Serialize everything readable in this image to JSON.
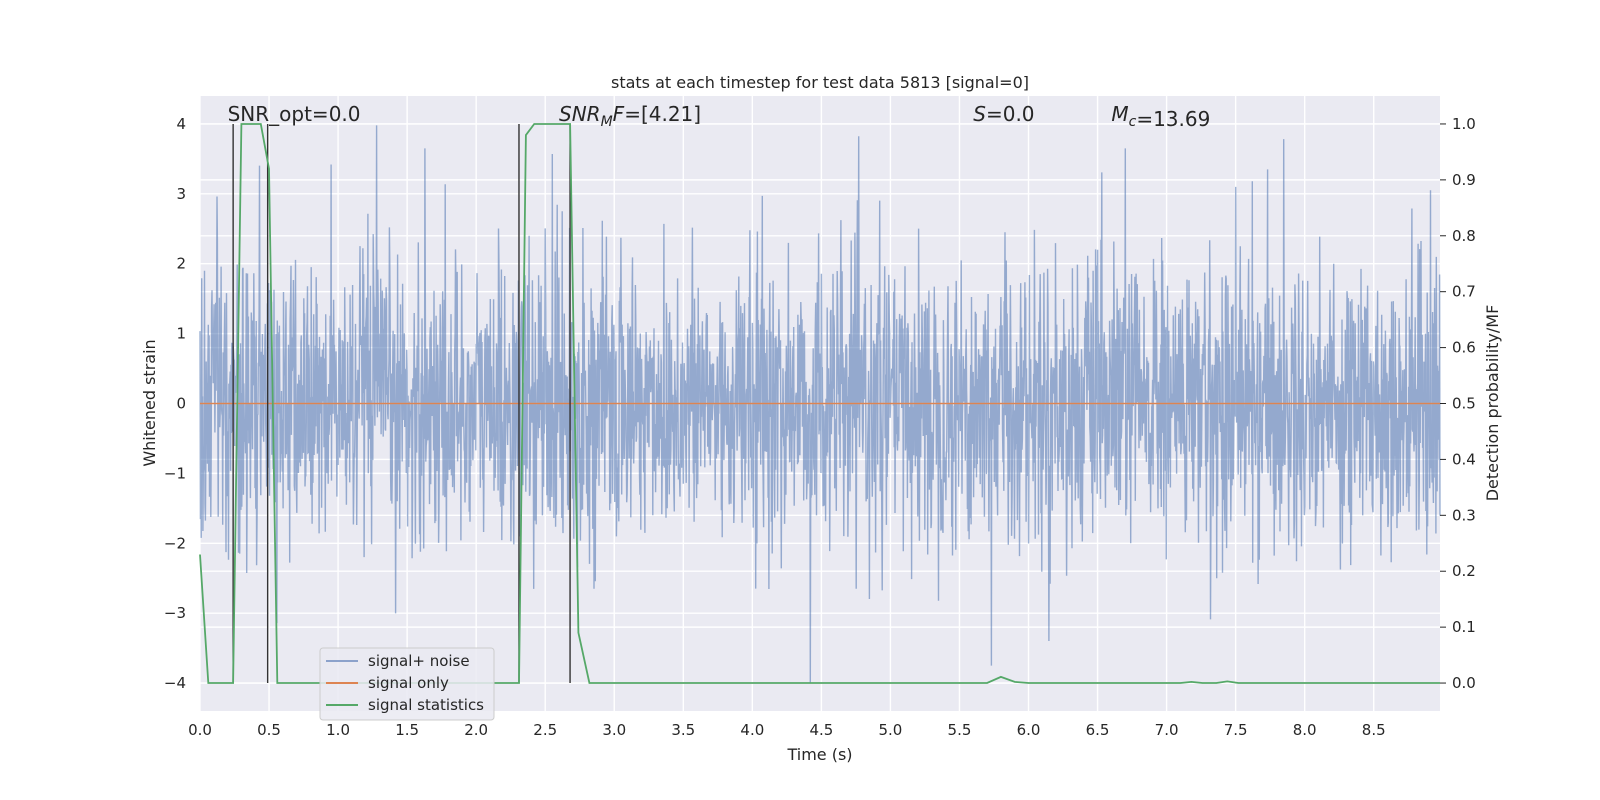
{
  "chart_data": {
    "type": "line",
    "title": "stats at each timestep for test data 5813 [signal=0]",
    "xlabel": "Time (s)",
    "ylabel": "Whitened strain",
    "ylabel_right": "Detection probability/MF",
    "xlim": [
      0,
      8.98
    ],
    "ylim": [
      -4.4,
      4.4
    ],
    "ylim_right": [
      -0.05,
      1.05
    ],
    "x_ticks": [
      "0.0",
      "0.5",
      "1.0",
      "1.5",
      "2.0",
      "2.5",
      "3.0",
      "3.5",
      "4.0",
      "4.5",
      "5.0",
      "5.5",
      "6.0",
      "6.5",
      "7.0",
      "7.5",
      "8.0",
      "8.5"
    ],
    "y_ticks": [
      "4",
      "3",
      "2",
      "1",
      "0",
      "−1",
      "−2",
      "−3",
      "−4"
    ],
    "y_ticks_right": [
      "1.0",
      "0.9",
      "0.8",
      "0.7",
      "0.6",
      "0.5",
      "0.4",
      "0.3",
      "0.2",
      "0.1",
      "0.0"
    ],
    "grid": true,
    "legend_position": "lower-left",
    "annotations": [
      {
        "text": "SNR_opt=0.0",
        "x": 0.2
      },
      {
        "text": "=[4.21]",
        "sym": "SNR",
        "sub": "M",
        "sym2": "F",
        "x": 2.6
      },
      {
        "text": "=0.0",
        "sym": "S",
        "x": 5.6
      },
      {
        "text": "=13.69",
        "sym": "M",
        "sub": "c",
        "x": 6.6
      }
    ],
    "detection_windows": [
      [
        0.24,
        0.49
      ],
      [
        2.31,
        2.68
      ]
    ],
    "series": [
      {
        "name": "signal+ noise",
        "color": "#4c72b0",
        "axis": "left",
        "noise": {
          "n": 3000,
          "sigma": 1.0,
          "seed": 5813
        },
        "spikes": [
          {
            "x": 4.42,
            "y": -4.0
          },
          {
            "x": 5.73,
            "y": -3.75
          },
          {
            "x": 5.83,
            "y": 2.45
          },
          {
            "x": 7.43,
            "y": 1.83
          },
          {
            "x": 7.5,
            "y": 3.1
          },
          {
            "x": 1.28,
            "y": 3.98
          },
          {
            "x": 0.95,
            "y": 3.42
          },
          {
            "x": 1.63,
            "y": 3.65
          },
          {
            "x": 2.55,
            "y": 3.57
          },
          {
            "x": 6.7,
            "y": 3.65
          },
          {
            "x": 7.73,
            "y": 3.35
          },
          {
            "x": 8.91,
            "y": 3.05
          }
        ]
      },
      {
        "name": "signal only",
        "color": "#dd8452",
        "axis": "left",
        "x": [
          0,
          8.98
        ],
        "y": [
          0,
          0
        ]
      },
      {
        "name": "signal statistics",
        "color": "#55a868",
        "axis": "right",
        "x": [
          0,
          0.06,
          0.24,
          0.3,
          0.44,
          0.5,
          0.56,
          2.31,
          2.36,
          2.42,
          2.6,
          2.68,
          2.74,
          2.82,
          5.7,
          5.8,
          5.9,
          6.0,
          7.1,
          7.18,
          7.26,
          7.36,
          7.44,
          7.52,
          8.98
        ],
        "y": [
          0.23,
          0.0,
          0.0,
          1.0,
          1.0,
          0.92,
          0.0,
          0.0,
          0.98,
          1.0,
          1.0,
          1.0,
          0.09,
          0.0,
          0.0,
          0.011,
          0.002,
          0.0,
          0.0,
          0.002,
          0.0,
          0.0,
          0.003,
          0.0,
          0.0
        ]
      }
    ]
  }
}
